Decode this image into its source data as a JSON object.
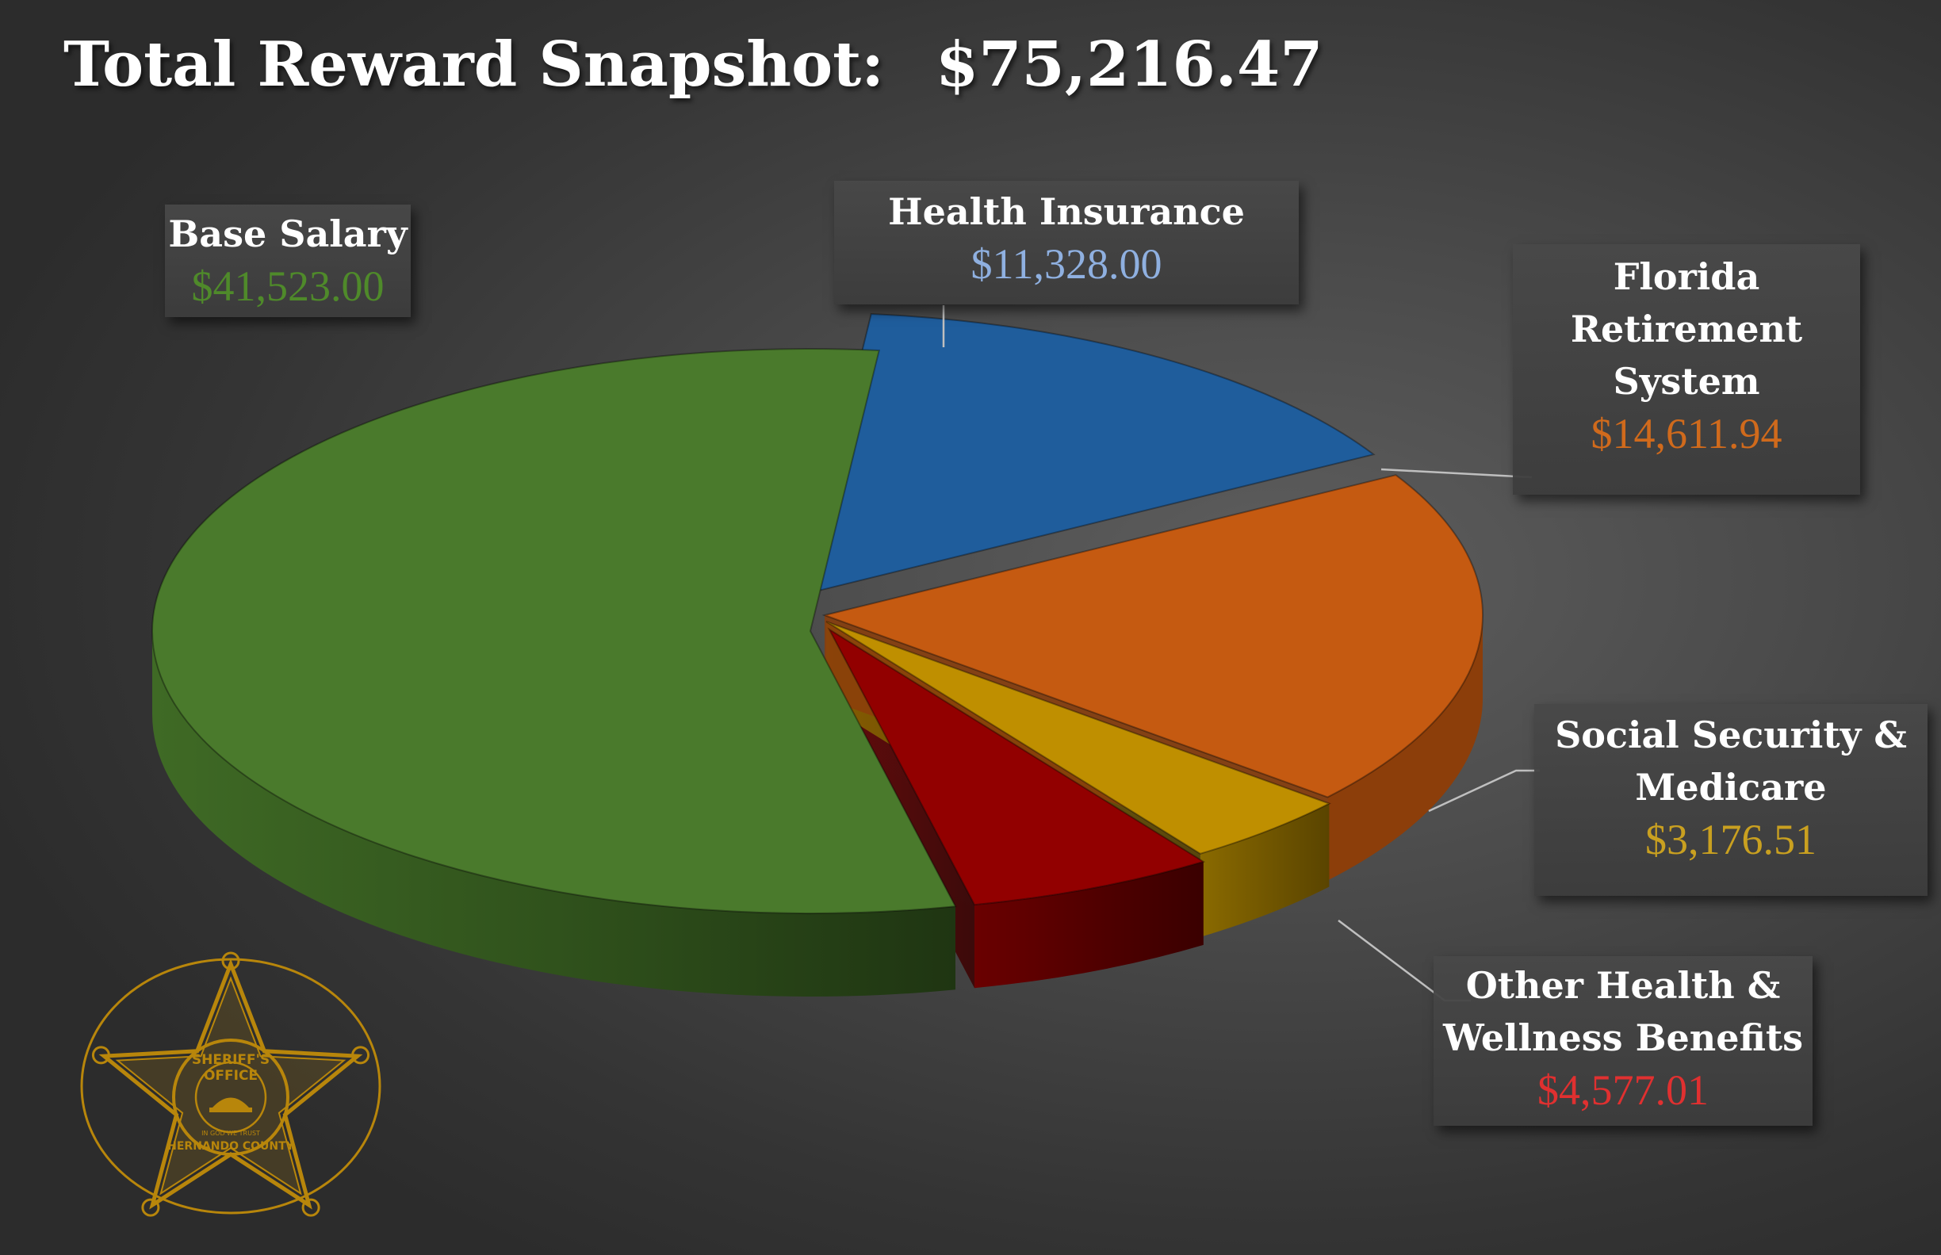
{
  "header": {
    "title": "Total Reward Snapshot:",
    "total": "$75,216.47"
  },
  "chart_data": {
    "type": "pie",
    "title": "Total Reward Snapshot:",
    "total": "$75,216.47",
    "slices": [
      {
        "label": "Base Salary",
        "value": 41523.0,
        "display": "$41,523.00",
        "color": "#4a7a2c",
        "label_color": "#4f8a2a"
      },
      {
        "label": "Health Insurance",
        "value": 11328.0,
        "display": "$11,328.00",
        "color": "#1f5d9c",
        "label_color": "#8fb0e0"
      },
      {
        "label": "Florida Retirement System",
        "value": 14611.94,
        "display": "$14,611.94",
        "color": "#c55a11",
        "label_color": "#d06a1c"
      },
      {
        "label": "Social Security & Medicare",
        "value": 3176.51,
        "display": "$3,176.51",
        "color": "#bf8f00",
        "label_color": "#c9a020"
      },
      {
        "label": "Other Health & Wellness Benefits",
        "value": 4577.01,
        "display": "$4,577.01",
        "color": "#920000",
        "label_color": "#e03030"
      }
    ]
  },
  "labels": {
    "base_salary": {
      "line1": "Base Salary",
      "value": "$41,523.00"
    },
    "health_insurance": {
      "line1": "Health Insurance",
      "value": "$11,328.00"
    },
    "frs": {
      "line1": "Florida",
      "line2": "Retirement",
      "line3": "System",
      "value": "$14,611.94"
    },
    "social_security": {
      "line1": "Social Security &",
      "line2": "Medicare",
      "value": "$3,176.51"
    },
    "other_health": {
      "line1": "Other Health &",
      "line2": "Wellness Benefits",
      "value": "$4,577.01"
    }
  },
  "badge": {
    "top_text": "SHERIFF'S",
    "middle_text": "OFFICE",
    "motto": "IN GOD WE TRUST",
    "county_text": "HERNANDO COUNTY",
    "color": "#b8860b"
  }
}
